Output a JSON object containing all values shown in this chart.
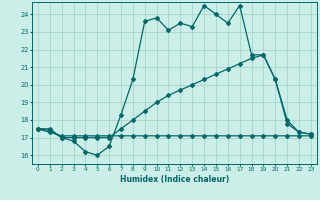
{
  "xlabel": "Humidex (Indice chaleur)",
  "bg_color": "#cceee8",
  "grid_color": "#aad8d0",
  "line_color": "#006868",
  "xlim": [
    -0.5,
    23.5
  ],
  "ylim": [
    15.5,
    24.7
  ],
  "xticks": [
    0,
    1,
    2,
    3,
    4,
    5,
    6,
    7,
    8,
    9,
    10,
    11,
    12,
    13,
    14,
    15,
    16,
    17,
    18,
    19,
    20,
    21,
    22,
    23
  ],
  "yticks": [
    16,
    17,
    18,
    19,
    20,
    21,
    22,
    23,
    24
  ],
  "line1_x": [
    0,
    1,
    2,
    3,
    4,
    5,
    6,
    7,
    8,
    9,
    10,
    11,
    12,
    13,
    14,
    15,
    16,
    17,
    18,
    19,
    20,
    21,
    22,
    23
  ],
  "line1_y": [
    17.5,
    17.4,
    17.0,
    16.8,
    16.2,
    16.0,
    16.5,
    18.3,
    20.3,
    23.6,
    23.8,
    23.1,
    23.5,
    23.3,
    24.5,
    24.0,
    23.5,
    24.5,
    21.7,
    21.7,
    20.3,
    17.8,
    17.3,
    17.2
  ],
  "line2_x": [
    0,
    1,
    2,
    3,
    4,
    5,
    6,
    7,
    8,
    9,
    10,
    11,
    12,
    13,
    14,
    15,
    16,
    17,
    18,
    19,
    20,
    21,
    22,
    23
  ],
  "line2_y": [
    17.5,
    17.3,
    17.1,
    17.1,
    17.1,
    17.1,
    17.1,
    17.1,
    17.1,
    17.1,
    17.1,
    17.1,
    17.1,
    17.1,
    17.1,
    17.1,
    17.1,
    17.1,
    17.1,
    17.1,
    17.1,
    17.1,
    17.1,
    17.1
  ],
  "line3_x": [
    0,
    1,
    2,
    3,
    4,
    5,
    6,
    7,
    8,
    9,
    10,
    11,
    12,
    13,
    14,
    15,
    16,
    17,
    18,
    19,
    20,
    21,
    22,
    23
  ],
  "line3_y": [
    17.5,
    17.5,
    17.0,
    17.0,
    17.0,
    17.0,
    17.0,
    17.5,
    18.0,
    18.5,
    19.0,
    19.4,
    19.7,
    20.0,
    20.3,
    20.6,
    20.9,
    21.2,
    21.5,
    21.7,
    20.3,
    18.0,
    17.3,
    17.2
  ]
}
